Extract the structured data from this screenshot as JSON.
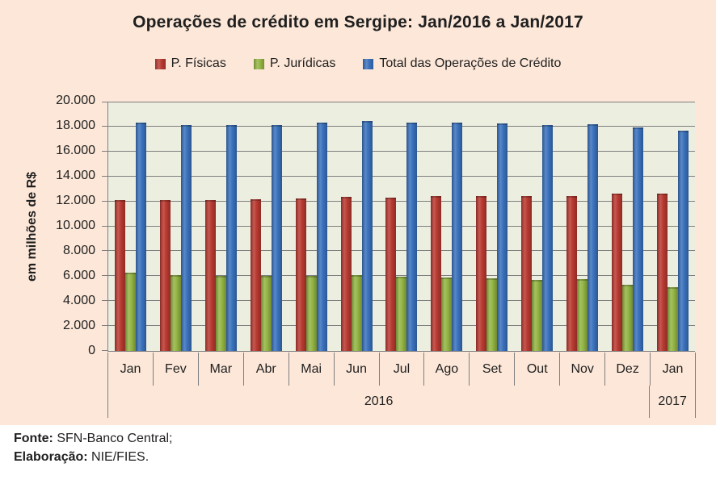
{
  "colors": {
    "chart_background": "#fce7d8",
    "plot_background": "#eceee0",
    "gridline": "#7f7f7f",
    "series_red": "#b93a31",
    "series_green": "#94b544",
    "series_blue": "#3a72bd"
  },
  "chart_data": {
    "type": "bar",
    "title": "Operações de crédito em Sergipe: Jan/2016 a Jan/2017",
    "ylabel": "em milhões de R$",
    "xlabel": "",
    "ylim": [
      0,
      20000
    ],
    "ytick_step": 2000,
    "ytick_labels": [
      "0",
      "2.000",
      "4.000",
      "6.000",
      "8.000",
      "10.000",
      "12.000",
      "14.000",
      "16.000",
      "18.000",
      "20.000"
    ],
    "grid": true,
    "legend_position": "top",
    "categories": [
      "Jan",
      "Fev",
      "Mar",
      "Abr",
      "Mai",
      "Jun",
      "Jul",
      "Ago",
      "Set",
      "Out",
      "Nov",
      "Dez",
      "Jan"
    ],
    "year_groups": [
      {
        "label": "2016",
        "span": 12
      },
      {
        "label": "2017",
        "span": 1
      }
    ],
    "series": [
      {
        "name": "P. Físicas",
        "color": "#b93a31",
        "values": [
          12100,
          12100,
          12100,
          12150,
          12250,
          12350,
          12300,
          12400,
          12450,
          12400,
          12450,
          12600,
          12600
        ]
      },
      {
        "name": "P. Jurídicas",
        "color": "#94b544",
        "values": [
          6250,
          6100,
          6050,
          6000,
          6050,
          6100,
          5950,
          5900,
          5850,
          5700,
          5750,
          5300,
          5100
        ]
      },
      {
        "name": "Total das Operações de Crédito",
        "color": "#3a72bd",
        "values": [
          18350,
          18150,
          18150,
          18150,
          18300,
          18450,
          18300,
          18300,
          18250,
          18100,
          18200,
          17900,
          17700
        ]
      }
    ]
  },
  "footer": {
    "fonte_label": "Fonte:",
    "fonte_value": " SFN-Banco Central;",
    "elaboracao_label": "Elaboração:",
    "elaboracao_value": " NIE/FIES."
  }
}
